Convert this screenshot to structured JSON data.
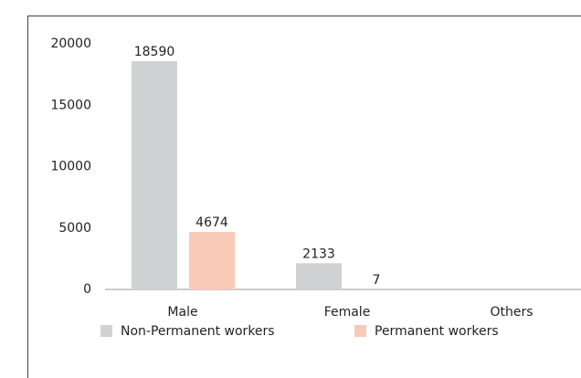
{
  "chart_data": {
    "type": "bar",
    "categories": [
      "Male",
      "Female",
      "Others"
    ],
    "series": [
      {
        "name": "Non-Permanent workers",
        "color": "#d1d2d4",
        "values": [
          18590,
          2133,
          null
        ]
      },
      {
        "name": "Permanent workers",
        "color": "#f9cab7",
        "values": [
          4674,
          7,
          null
        ]
      }
    ],
    "ylim": [
      0,
      20000
    ],
    "yticks": [
      0,
      5000,
      10000,
      15000,
      20000
    ],
    "grid": false,
    "legend": "bottom"
  }
}
